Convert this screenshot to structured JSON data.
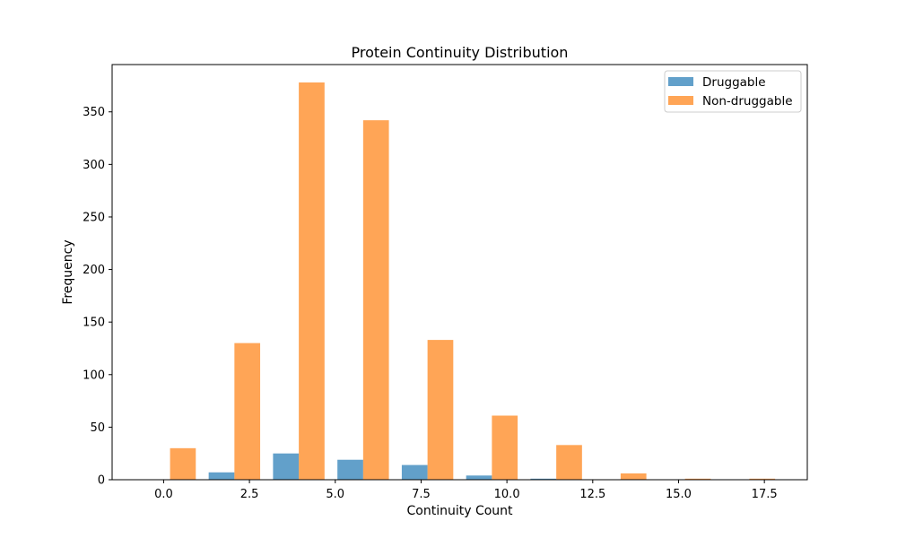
{
  "chart_data": {
    "type": "bar",
    "title": "Protein Continuity Distribution",
    "xlabel": "Continuity Count",
    "ylabel": "Frequency",
    "xlim": [
      -1.5,
      18.75
    ],
    "ylim": [
      0,
      395
    ],
    "xticks": [
      "0.0",
      "2.5",
      "5.0",
      "7.5",
      "10.0",
      "12.5",
      "15.0",
      "17.5"
    ],
    "xtick_values": [
      0,
      2.5,
      5,
      7.5,
      10,
      12.5,
      15,
      17.5
    ],
    "yticks": [
      "0",
      "50",
      "100",
      "150",
      "200",
      "250",
      "300",
      "350"
    ],
    "ytick_values": [
      0,
      50,
      100,
      150,
      200,
      250,
      300,
      350
    ],
    "bin_edges": [
      -0.75,
      1.125,
      3.0,
      4.875,
      6.75,
      8.625,
      10.5,
      12.375,
      14.25,
      16.125,
      18.0
    ],
    "series": [
      {
        "name": "Druggable",
        "color": "#1f77b4",
        "values": [
          0,
          7,
          25,
          19,
          14,
          4,
          1,
          0,
          0,
          0
        ]
      },
      {
        "name": "Non-druggable",
        "color": "#ff7f0e",
        "values": [
          30,
          130,
          378,
          342,
          133,
          61,
          33,
          6,
          1,
          1
        ]
      }
    ],
    "legend_position": "upper right",
    "grid": false
  }
}
